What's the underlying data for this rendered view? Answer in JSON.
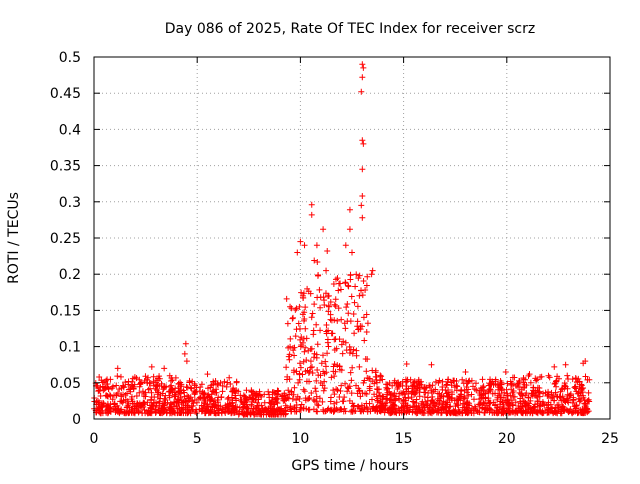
{
  "chart_data": {
    "type": "scatter",
    "title": "Day 086 of 2025, Rate Of TEC Index for receiver scrz",
    "xlabel": "GPS time / hours",
    "ylabel": "ROTI / TECUs",
    "xlim": [
      0,
      25
    ],
    "ylim": [
      0,
      0.5
    ],
    "x_ticks": [
      0,
      5,
      10,
      15,
      20,
      25
    ],
    "y_ticks": [
      0,
      0.05,
      0.1,
      0.15,
      0.2,
      0.25,
      0.3,
      0.35,
      0.4,
      0.45,
      0.5
    ],
    "grid": true,
    "marker": "+",
    "color": "#ff0000",
    "points_description": "dense ROTI samples across the full day; background level ~0.01-0.05 TECU, elevated 0.05-0.25 between ~9.5h and 13h",
    "highlight_points": [
      {
        "x": 13.0,
        "y": 0.49
      },
      {
        "x": 13.05,
        "y": 0.485
      },
      {
        "x": 13.0,
        "y": 0.472
      },
      {
        "x": 12.95,
        "y": 0.452
      },
      {
        "x": 13.0,
        "y": 0.385
      },
      {
        "x": 13.05,
        "y": 0.38
      },
      {
        "x": 13.0,
        "y": 0.345
      },
      {
        "x": 13.0,
        "y": 0.308
      },
      {
        "x": 12.95,
        "y": 0.295
      },
      {
        "x": 13.0,
        "y": 0.278
      },
      {
        "x": 10.55,
        "y": 0.296
      },
      {
        "x": 10.55,
        "y": 0.282
      },
      {
        "x": 12.4,
        "y": 0.289
      },
      {
        "x": 12.4,
        "y": 0.262
      },
      {
        "x": 11.1,
        "y": 0.262
      },
      {
        "x": 10.0,
        "y": 0.245
      },
      {
        "x": 10.2,
        "y": 0.24
      },
      {
        "x": 10.8,
        "y": 0.24
      },
      {
        "x": 11.3,
        "y": 0.232
      },
      {
        "x": 12.5,
        "y": 0.23
      },
      {
        "x": 12.2,
        "y": 0.24
      },
      {
        "x": 9.85,
        "y": 0.23
      },
      {
        "x": 13.45,
        "y": 0.2
      },
      {
        "x": 13.5,
        "y": 0.205
      },
      {
        "x": 4.45,
        "y": 0.104
      },
      {
        "x": 4.4,
        "y": 0.09
      },
      {
        "x": 4.5,
        "y": 0.08
      },
      {
        "x": 19.95,
        "y": 0.065
      },
      {
        "x": 23.8,
        "y": 0.08
      },
      {
        "x": 23.7,
        "y": 0.077
      },
      {
        "x": 16.35,
        "y": 0.075
      },
      {
        "x": 15.15,
        "y": 0.076
      },
      {
        "x": 1.15,
        "y": 0.07
      },
      {
        "x": 2.8,
        "y": 0.072
      },
      {
        "x": 3.4,
        "y": 0.07
      },
      {
        "x": 22.3,
        "y": 0.072
      },
      {
        "x": 22.85,
        "y": 0.075
      },
      {
        "x": 21.1,
        "y": 0.062
      },
      {
        "x": 18.0,
        "y": 0.065
      },
      {
        "x": 5.5,
        "y": 0.062
      },
      {
        "x": 6.55,
        "y": 0.057
      },
      {
        "x": 0.25,
        "y": 0.058
      }
    ],
    "envelope": [
      {
        "x_start": 0.0,
        "x_end": 1.0,
        "y_min": 0.008,
        "y_max": 0.055
      },
      {
        "x_start": 1.0,
        "x_end": 4.0,
        "y_min": 0.008,
        "y_max": 0.06
      },
      {
        "x_start": 4.0,
        "x_end": 7.0,
        "y_min": 0.008,
        "y_max": 0.055
      },
      {
        "x_start": 7.0,
        "x_end": 9.3,
        "y_min": 0.006,
        "y_max": 0.04
      },
      {
        "x_start": 9.3,
        "x_end": 10.0,
        "y_min": 0.01,
        "y_max": 0.17
      },
      {
        "x_start": 10.0,
        "x_end": 11.5,
        "y_min": 0.01,
        "y_max": 0.22
      },
      {
        "x_start": 11.5,
        "x_end": 13.3,
        "y_min": 0.01,
        "y_max": 0.2
      },
      {
        "x_start": 13.3,
        "x_end": 14.0,
        "y_min": 0.01,
        "y_max": 0.07
      },
      {
        "x_start": 14.0,
        "x_end": 20.0,
        "y_min": 0.008,
        "y_max": 0.055
      },
      {
        "x_start": 20.0,
        "x_end": 24.0,
        "y_min": 0.008,
        "y_max": 0.06
      }
    ]
  }
}
